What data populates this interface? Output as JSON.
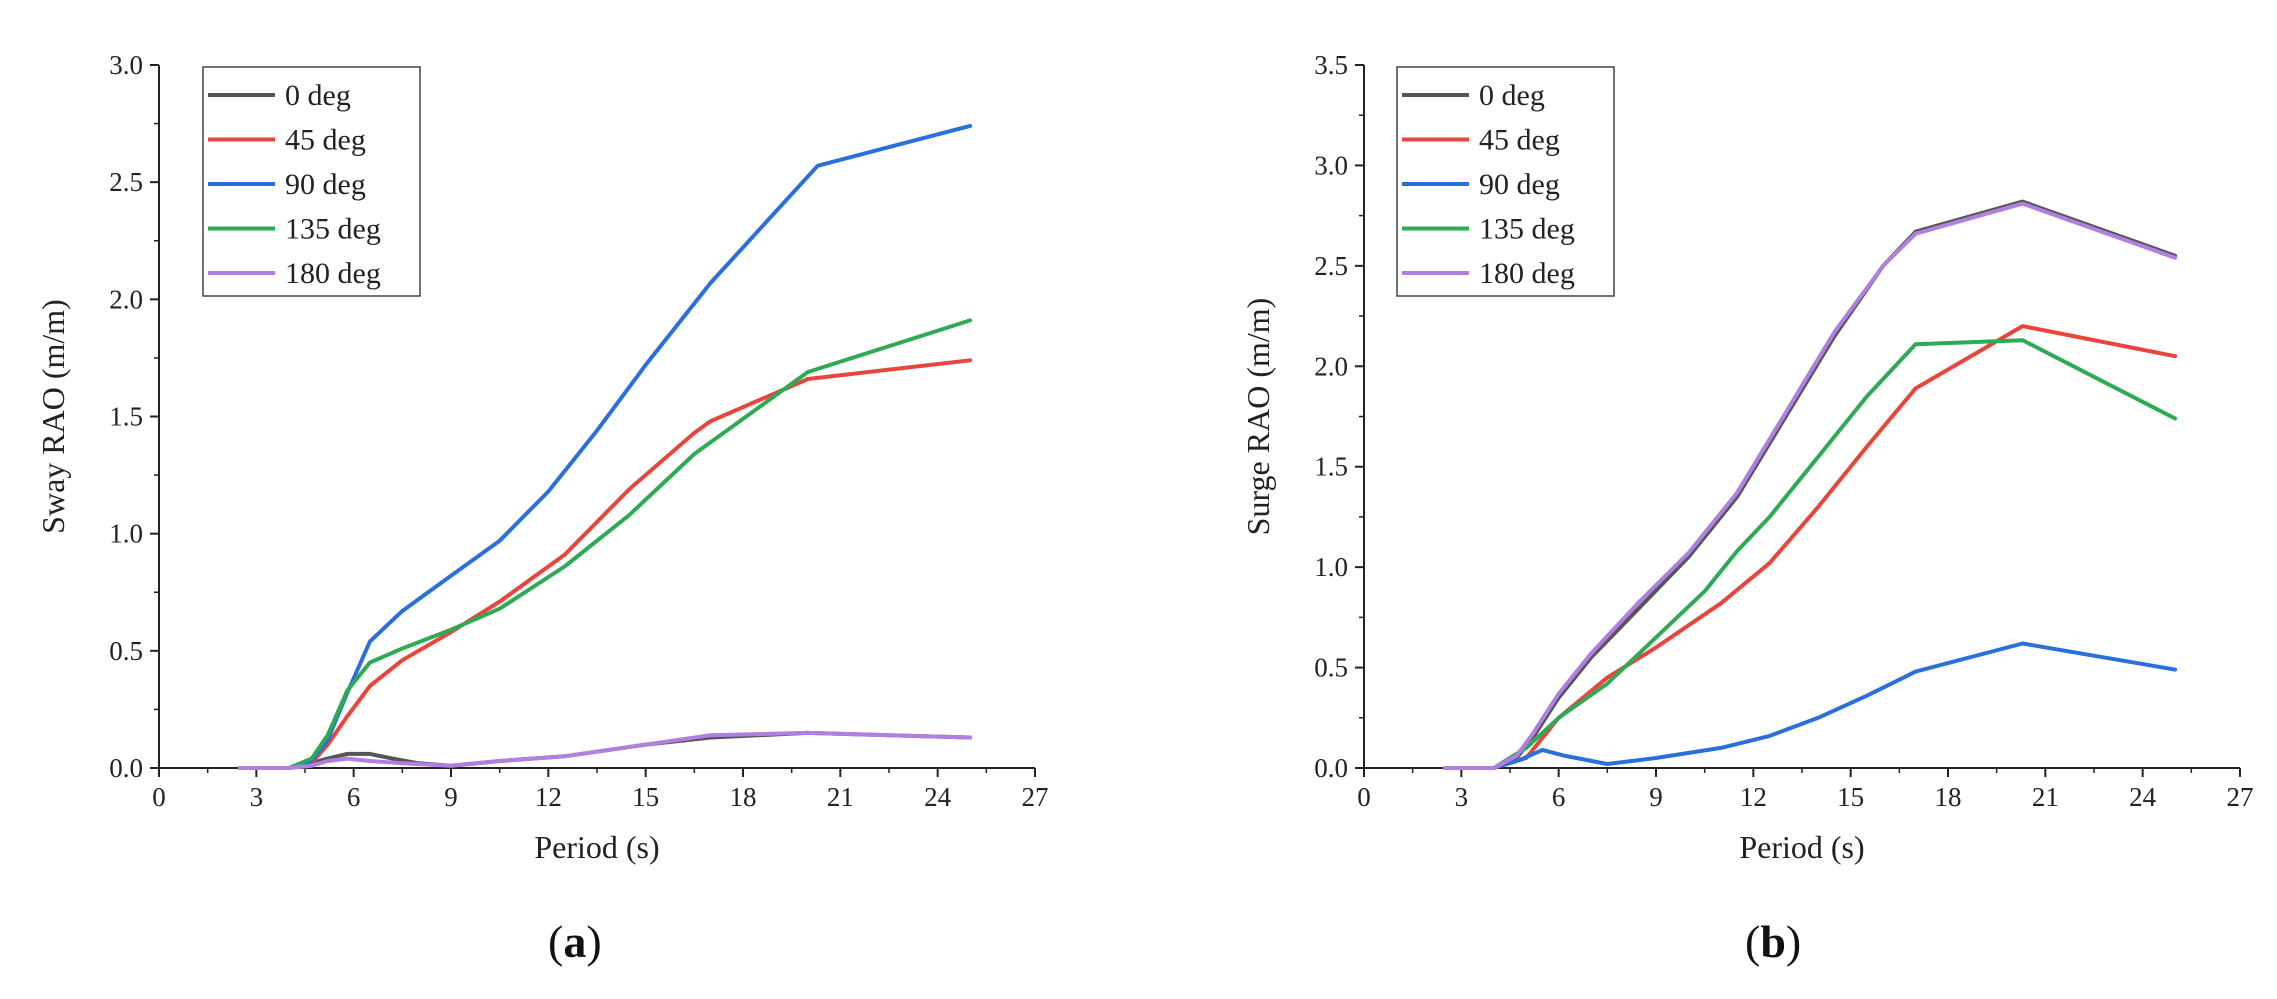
{
  "chart_data": [
    {
      "type": "line",
      "panel_label": "a",
      "xlabel": "Period (s)",
      "ylabel": "Sway RAO (m/m)",
      "xlim": [
        0,
        27
      ],
      "ylim": [
        0,
        3.0
      ],
      "xticks": [
        0,
        3,
        6,
        9,
        12,
        15,
        18,
        21,
        24,
        27
      ],
      "yticks": [
        0.0,
        0.5,
        1.0,
        1.5,
        2.0,
        2.5,
        3.0
      ],
      "ytick_labels": [
        "0.0",
        "0.5",
        "1.0",
        "1.5",
        "2.0",
        "2.5",
        "3.0"
      ],
      "legend_position": "top-left",
      "series": [
        {
          "name": "0 deg",
          "color": "#555555",
          "x": [
            2.5,
            4.0,
            4.7,
            5.2,
            5.8,
            6.5,
            7.2,
            8.0,
            9.0,
            10.5,
            12.5,
            15.0,
            17.0,
            20.0,
            25.0
          ],
          "y": [
            0.0,
            0.0,
            0.02,
            0.04,
            0.06,
            0.06,
            0.04,
            0.02,
            0.01,
            0.03,
            0.05,
            0.1,
            0.13,
            0.15,
            0.13
          ]
        },
        {
          "name": "45 deg",
          "color": "#e8453c",
          "x": [
            2.5,
            4.0,
            4.7,
            5.2,
            5.8,
            6.5,
            7.5,
            9.0,
            10.5,
            12.5,
            14.5,
            16.5,
            17.0,
            20.0,
            25.0
          ],
          "y": [
            0.0,
            0.0,
            0.02,
            0.1,
            0.22,
            0.35,
            0.46,
            0.58,
            0.71,
            0.91,
            1.19,
            1.43,
            1.48,
            1.66,
            1.74
          ]
        },
        {
          "name": "90 deg",
          "color": "#2a6fdb",
          "x": [
            2.5,
            4.0,
            4.7,
            5.2,
            5.8,
            6.5,
            7.5,
            9.0,
            10.5,
            12.0,
            13.5,
            15.0,
            17.0,
            20.3,
            25.0
          ],
          "y": [
            0.0,
            0.0,
            0.03,
            0.12,
            0.32,
            0.54,
            0.67,
            0.82,
            0.97,
            1.18,
            1.44,
            1.72,
            2.07,
            2.57,
            2.74
          ]
        },
        {
          "name": "135 deg",
          "color": "#2eaa55",
          "x": [
            2.5,
            4.0,
            4.7,
            5.2,
            5.8,
            6.5,
            7.5,
            9.0,
            10.5,
            12.5,
            14.5,
            16.5,
            20.0,
            25.0
          ],
          "y": [
            0.0,
            0.0,
            0.04,
            0.14,
            0.33,
            0.45,
            0.51,
            0.59,
            0.68,
            0.86,
            1.08,
            1.34,
            1.69,
            1.91
          ]
        },
        {
          "name": "180 deg",
          "color": "#b07fe0",
          "x": [
            2.5,
            4.0,
            4.7,
            5.2,
            5.8,
            6.5,
            7.5,
            9.0,
            10.5,
            12.5,
            15.0,
            17.0,
            20.0,
            25.0
          ],
          "y": [
            0.0,
            0.0,
            0.01,
            0.03,
            0.04,
            0.03,
            0.02,
            0.01,
            0.03,
            0.05,
            0.1,
            0.14,
            0.15,
            0.13
          ]
        }
      ]
    },
    {
      "type": "line",
      "panel_label": "b",
      "xlabel": "Period (s)",
      "ylabel": "Surge RAO (m/m)",
      "xlim": [
        0,
        27
      ],
      "ylim": [
        0,
        3.5
      ],
      "xticks": [
        0,
        3,
        6,
        9,
        12,
        15,
        18,
        21,
        24,
        27
      ],
      "yticks": [
        0.0,
        0.5,
        1.0,
        1.5,
        2.0,
        2.5,
        3.0,
        3.5
      ],
      "ytick_labels": [
        "0.0",
        "0.5",
        "1.0",
        "1.5",
        "2.0",
        "2.5",
        "3.0",
        "3.5"
      ],
      "legend_position": "top-left",
      "series": [
        {
          "name": "0 deg",
          "color": "#555555",
          "x": [
            2.5,
            4.0,
            4.7,
            5.2,
            6.0,
            7.0,
            8.5,
            10.0,
            11.5,
            13.0,
            14.5,
            16.0,
            17.0,
            20.3,
            25.0
          ],
          "y": [
            0.0,
            0.0,
            0.05,
            0.15,
            0.35,
            0.55,
            0.8,
            1.05,
            1.35,
            1.75,
            2.15,
            2.5,
            2.67,
            2.82,
            2.55
          ]
        },
        {
          "name": "45 deg",
          "color": "#e8453c",
          "x": [
            2.5,
            4.0,
            5.0,
            6.0,
            7.5,
            9.0,
            11.0,
            12.5,
            14.0,
            15.5,
            17.0,
            20.3,
            25.0
          ],
          "y": [
            0.0,
            0.0,
            0.05,
            0.25,
            0.45,
            0.6,
            0.82,
            1.02,
            1.3,
            1.6,
            1.89,
            2.2,
            2.05
          ]
        },
        {
          "name": "90 deg",
          "color": "#2a6fdb",
          "x": [
            2.5,
            4.0,
            4.8,
            5.5,
            6.2,
            7.5,
            9.0,
            11.0,
            12.5,
            14.0,
            15.5,
            17.0,
            20.3,
            25.0
          ],
          "y": [
            0.0,
            0.0,
            0.04,
            0.09,
            0.06,
            0.02,
            0.05,
            0.1,
            0.16,
            0.25,
            0.36,
            0.48,
            0.62,
            0.49
          ]
        },
        {
          "name": "135 deg",
          "color": "#2eaa55",
          "x": [
            2.5,
            4.0,
            5.0,
            6.0,
            7.5,
            9.0,
            10.5,
            11.5,
            12.5,
            14.0,
            15.5,
            17.0,
            20.3,
            25.0
          ],
          "y": [
            0.0,
            0.0,
            0.1,
            0.25,
            0.42,
            0.65,
            0.88,
            1.08,
            1.25,
            1.55,
            1.85,
            2.11,
            2.13,
            1.74
          ]
        },
        {
          "name": "180 deg",
          "color": "#b07fe0",
          "x": [
            2.5,
            4.0,
            4.7,
            5.2,
            6.0,
            7.0,
            8.5,
            10.0,
            11.5,
            13.0,
            14.5,
            16.0,
            17.0,
            20.3,
            25.0
          ],
          "y": [
            0.0,
            0.0,
            0.06,
            0.17,
            0.37,
            0.57,
            0.83,
            1.07,
            1.37,
            1.77,
            2.17,
            2.5,
            2.66,
            2.81,
            2.54
          ]
        }
      ]
    }
  ]
}
